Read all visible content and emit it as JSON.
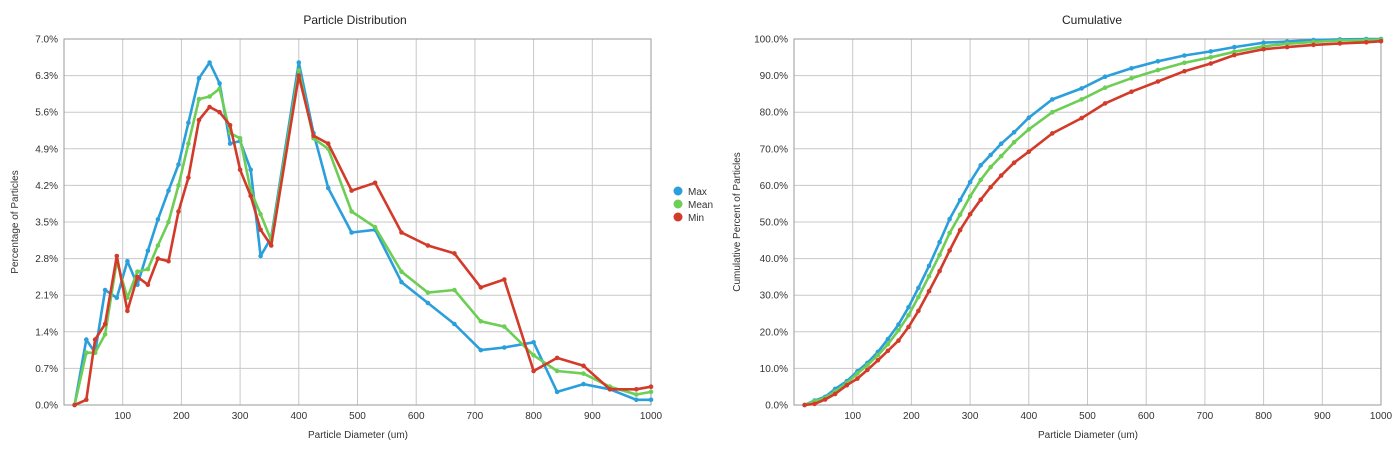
{
  "colors": {
    "Max": "#2b9fdc",
    "Mean": "#6dce55",
    "Min": "#d23a2a"
  },
  "chart_data": [
    {
      "type": "line",
      "title": "Particle Distribution",
      "xlabel": "Particle Diameter (um)",
      "ylabel": "Percentage of Particles",
      "xlim": [
        0,
        1000
      ],
      "ylim": [
        0,
        7.0
      ],
      "xticks": [
        "100",
        "200",
        "300",
        "400",
        "500",
        "600",
        "700",
        "800",
        "900",
        "1000"
      ],
      "yticks": [
        "0.0%",
        "0.7%",
        "1.4%",
        "2.1%",
        "2.8%",
        "3.5%",
        "4.2%",
        "4.9%",
        "5.6%",
        "6.3%",
        "7.0%"
      ],
      "legend": [
        "Max",
        "Mean",
        "Min"
      ],
      "legend_position": "right",
      "grid": true,
      "series": [
        {
          "name": "Max",
          "x": [
            18,
            38,
            53,
            70,
            90,
            108,
            125,
            143,
            160,
            178,
            195,
            212,
            230,
            248,
            265,
            283,
            300,
            318,
            335,
            353,
            400,
            425,
            450,
            490,
            530,
            575,
            620,
            665,
            710,
            750,
            800,
            840,
            885,
            930,
            975,
            1000
          ],
          "y": [
            0,
            1.25,
            1.0,
            2.2,
            2.05,
            2.75,
            2.3,
            2.95,
            3.55,
            4.1,
            4.6,
            5.4,
            6.25,
            6.55,
            6.15,
            5.0,
            5.05,
            4.5,
            2.85,
            3.2,
            6.55,
            5.2,
            4.15,
            3.3,
            3.35,
            2.35,
            1.95,
            1.55,
            1.05,
            1.1,
            1.2,
            0.25,
            0.4,
            0.3,
            0.1,
            0.1
          ]
        },
        {
          "name": "Mean",
          "x": [
            18,
            38,
            53,
            70,
            90,
            108,
            125,
            143,
            160,
            178,
            195,
            212,
            230,
            248,
            265,
            283,
            300,
            318,
            335,
            353,
            400,
            425,
            450,
            490,
            530,
            575,
            620,
            665,
            710,
            750,
            800,
            840,
            885,
            930,
            975,
            1000
          ],
          "y": [
            0,
            1.0,
            1.0,
            1.35,
            2.75,
            2.05,
            2.55,
            2.6,
            3.05,
            3.5,
            4.2,
            5.0,
            5.85,
            5.9,
            6.05,
            5.2,
            5.1,
            4.1,
            3.65,
            3.15,
            6.4,
            5.1,
            4.9,
            3.7,
            3.4,
            2.55,
            2.15,
            2.2,
            1.6,
            1.5,
            0.95,
            0.65,
            0.6,
            0.35,
            0.2,
            0.25
          ]
        },
        {
          "name": "Min",
          "x": [
            18,
            38,
            53,
            70,
            90,
            108,
            125,
            143,
            160,
            178,
            195,
            212,
            230,
            248,
            265,
            283,
            300,
            318,
            335,
            353,
            400,
            425,
            450,
            490,
            530,
            575,
            620,
            665,
            710,
            750,
            800,
            840,
            885,
            930,
            975,
            1000
          ],
          "y": [
            0,
            0.1,
            1.25,
            1.55,
            2.85,
            1.8,
            2.45,
            2.3,
            2.8,
            2.75,
            3.7,
            4.35,
            5.45,
            5.7,
            5.6,
            5.35,
            4.5,
            4.0,
            3.35,
            3.05,
            6.3,
            5.15,
            5.0,
            4.1,
            4.25,
            3.3,
            3.05,
            2.9,
            2.25,
            2.4,
            0.65,
            0.9,
            0.75,
            0.3,
            0.3,
            0.35
          ]
        }
      ]
    },
    {
      "type": "line",
      "title": "Cumulative",
      "xlabel": "Particle Diameter (um)",
      "ylabel": "Cumulative Percent of Particles",
      "xlim": [
        0,
        1000
      ],
      "ylim": [
        0,
        100
      ],
      "xticks": [
        "100",
        "200",
        "300",
        "400",
        "500",
        "600",
        "700",
        "800",
        "900",
        "1000"
      ],
      "yticks": [
        "0.0%",
        "10.0%",
        "20.0%",
        "30.0%",
        "40.0%",
        "50.0%",
        "60.0%",
        "70.0%",
        "80.0%",
        "90.0%",
        "100.0%"
      ],
      "grid": true,
      "series": [
        {
          "name": "Max",
          "x": [
            18,
            35,
            53,
            70,
            90,
            108,
            125,
            143,
            160,
            178,
            195,
            212,
            230,
            248,
            265,
            283,
            300,
            318,
            335,
            353,
            375,
            400,
            440,
            490,
            530,
            575,
            620,
            665,
            710,
            750,
            800,
            840,
            885,
            930,
            975,
            1000
          ],
          "y": [
            0,
            1.2,
            2.2,
            4.4,
            6.5,
            9.2,
            11.5,
            14.5,
            18.0,
            22.0,
            26.7,
            32.0,
            38.0,
            44.5,
            50.8,
            56.0,
            60.9,
            65.5,
            68.3,
            71.4,
            74.5,
            78.5,
            83.5,
            86.5,
            89.7,
            92.0,
            93.9,
            95.5,
            96.6,
            97.8,
            99.0,
            99.3,
            99.7,
            99.9,
            100,
            100
          ]
        },
        {
          "name": "Mean",
          "x": [
            18,
            35,
            53,
            70,
            90,
            108,
            125,
            143,
            160,
            178,
            195,
            212,
            230,
            248,
            265,
            283,
            300,
            318,
            335,
            353,
            375,
            400,
            440,
            490,
            530,
            575,
            620,
            665,
            710,
            750,
            800,
            840,
            885,
            930,
            975,
            1000
          ],
          "y": [
            0,
            1.0,
            1.9,
            3.7,
            6.0,
            8.6,
            10.9,
            13.6,
            16.6,
            20.4,
            24.5,
            29.5,
            35.2,
            41.0,
            47.0,
            52.0,
            57.0,
            61.5,
            65.0,
            68.0,
            71.8,
            75.3,
            80.0,
            83.5,
            86.7,
            89.3,
            91.5,
            93.5,
            95.0,
            96.5,
            98.0,
            98.7,
            99.2,
            99.6,
            99.7,
            99.8
          ]
        },
        {
          "name": "Min",
          "x": [
            18,
            35,
            53,
            70,
            90,
            108,
            125,
            143,
            160,
            178,
            195,
            212,
            230,
            248,
            265,
            283,
            300,
            318,
            335,
            353,
            375,
            400,
            440,
            490,
            530,
            575,
            620,
            665,
            710,
            750,
            800,
            840,
            885,
            930,
            975,
            1000
          ],
          "y": [
            0,
            0.3,
            1.5,
            3.0,
            5.4,
            7.2,
            9.6,
            12.2,
            14.8,
            17.6,
            21.3,
            25.7,
            31.1,
            36.6,
            42.2,
            47.8,
            52.1,
            56.1,
            59.5,
            62.7,
            66.2,
            69.2,
            74.2,
            78.4,
            82.4,
            85.6,
            88.4,
            91.2,
            93.3,
            95.6,
            97.2,
            97.8,
            98.4,
            98.8,
            99.1,
            99.4
          ]
        }
      ]
    }
  ]
}
